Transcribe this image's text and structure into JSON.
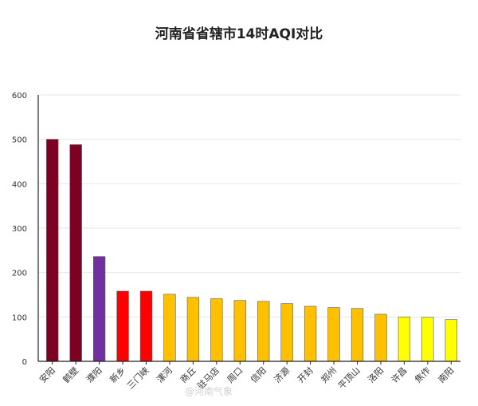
{
  "chart_data": {
    "type": "bar",
    "title": "河南省省辖市14时AQI对比",
    "xlabel": "",
    "ylabel": "",
    "ylim": [
      0,
      600
    ],
    "yticks": [
      0,
      100,
      200,
      300,
      400,
      500,
      600
    ],
    "grid": true,
    "categories": [
      "安阳",
      "鹤壁",
      "濮阳",
      "新乡",
      "三门峡",
      "漯河",
      "商丘",
      "驻马店",
      "周口",
      "信阳",
      "济源",
      "开封",
      "郑州",
      "平顶山",
      "洛阳",
      "许昌",
      "焦作",
      "南阳"
    ],
    "values": [
      500,
      488,
      236,
      158,
      158,
      151,
      144,
      141,
      137,
      135,
      130,
      124,
      121,
      119,
      106,
      100,
      99,
      94
    ],
    "colors": [
      "#7e0023",
      "#7e0023",
      "#7030a0",
      "#ff0000",
      "#ff0000",
      "#ffc000",
      "#ffc000",
      "#ffc000",
      "#ffc000",
      "#ffc000",
      "#ffc000",
      "#ffc000",
      "#ffc000",
      "#ffc000",
      "#ffc000",
      "#ffff00",
      "#ffff00",
      "#ffff00"
    ]
  },
  "watermark": "@河南气象"
}
